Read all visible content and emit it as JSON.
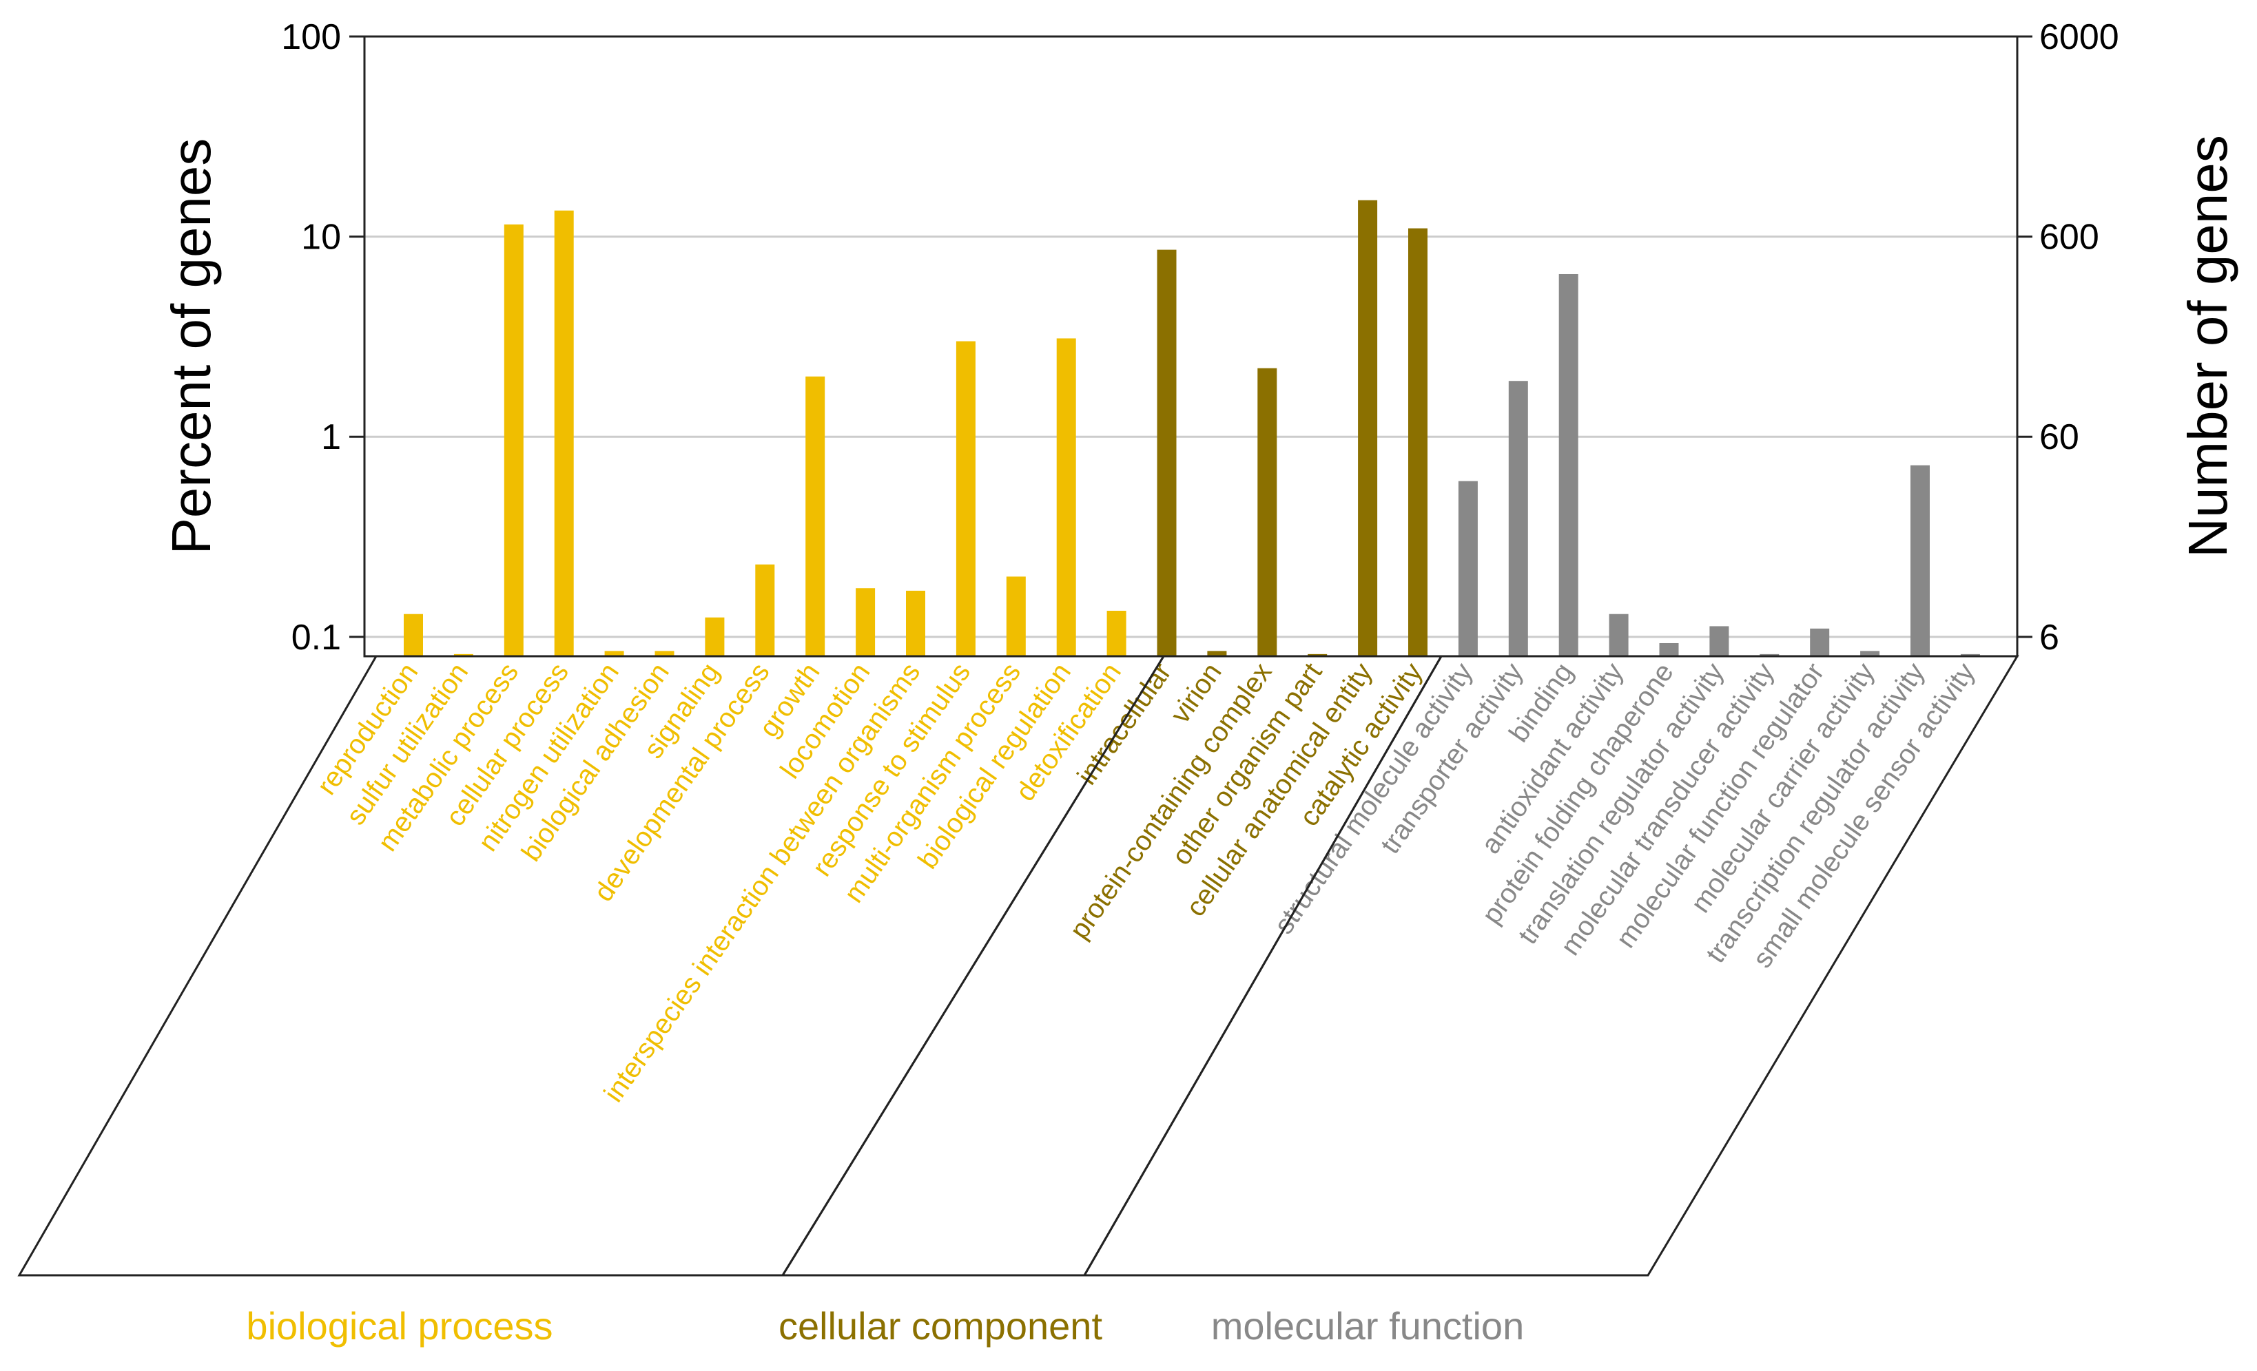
{
  "chart_data": {
    "type": "bar",
    "y_scale": "log",
    "grid": true,
    "ylabel_left": "Percent of genes",
    "ylabel_right": "Number of genes",
    "ylim_left": [
      0.08,
      100
    ],
    "ylim_right": [
      4.8,
      6000
    ],
    "left_ticks": [
      {
        "value": 0.1,
        "label": "0.1"
      },
      {
        "value": 1,
        "label": "1"
      },
      {
        "value": 10,
        "label": "10"
      },
      {
        "value": 100,
        "label": "100"
      }
    ],
    "right_ticks": [
      {
        "value": 6,
        "label": "6"
      },
      {
        "value": 60,
        "label": "60"
      },
      {
        "value": 600,
        "label": "600"
      },
      {
        "value": 6000,
        "label": "6000"
      }
    ],
    "colors": {
      "biological_process": "#F0BE00",
      "cellular_component": "#8B7000",
      "molecular_function": "#888888"
    },
    "groups": [
      {
        "key": "biological_process",
        "label": "biological process"
      },
      {
        "key": "cellular_component",
        "label": "cellular component"
      },
      {
        "key": "molecular_function",
        "label": "molecular function"
      }
    ],
    "bars": [
      {
        "label": "reproduction",
        "group": "biological_process",
        "value": 0.13
      },
      {
        "label": "sulfur utilization",
        "group": "biological_process",
        "value": 0.082
      },
      {
        "label": "metabolic process",
        "group": "biological_process",
        "value": 11.5
      },
      {
        "label": "cellular process",
        "group": "biological_process",
        "value": 13.5
      },
      {
        "label": "nitrogen utilization",
        "group": "biological_process",
        "value": 0.085
      },
      {
        "label": "biological adhesion",
        "group": "biological_process",
        "value": 0.085
      },
      {
        "label": "signaling",
        "group": "biological_process",
        "value": 0.125
      },
      {
        "label": "developmental process",
        "group": "biological_process",
        "value": 0.23
      },
      {
        "label": "growth",
        "group": "biological_process",
        "value": 2.0
      },
      {
        "label": "locomotion",
        "group": "biological_process",
        "value": 0.175
      },
      {
        "label": "interspecies interaction between organisms",
        "group": "biological_process",
        "value": 0.17
      },
      {
        "label": "response to stimulus",
        "group": "biological_process",
        "value": 3.0
      },
      {
        "label": "multi-organism process",
        "group": "biological_process",
        "value": 0.2
      },
      {
        "label": "biological regulation",
        "group": "biological_process",
        "value": 3.1
      },
      {
        "label": "detoxification",
        "group": "biological_process",
        "value": 0.135
      },
      {
        "label": "intracellular",
        "group": "cellular_component",
        "value": 8.6
      },
      {
        "label": "virion",
        "group": "cellular_component",
        "value": 0.085
      },
      {
        "label": "protein-containing complex",
        "group": "cellular_component",
        "value": 2.2
      },
      {
        "label": "other organism part",
        "group": "cellular_component",
        "value": 0.082
      },
      {
        "label": "cellular anatomical entity",
        "group": "cellular_component",
        "value": 15.2
      },
      {
        "label": "catalytic activity",
        "group": "cellular_component",
        "value": 11.0
      },
      {
        "label": "structural molecule activity",
        "group": "molecular_function",
        "value": 0.6
      },
      {
        "label": "transporter activity",
        "group": "molecular_function",
        "value": 1.9
      },
      {
        "label": "binding",
        "group": "molecular_function",
        "value": 6.5
      },
      {
        "label": "antioxidant activity",
        "group": "molecular_function",
        "value": 0.13
      },
      {
        "label": "protein folding chaperone",
        "group": "molecular_function",
        "value": 0.093
      },
      {
        "label": "translation regulator activity",
        "group": "molecular_function",
        "value": 0.113
      },
      {
        "label": "molecular transducer activity",
        "group": "molecular_function",
        "value": 0.082
      },
      {
        "label": "molecular function regulator",
        "group": "molecular_function",
        "value": 0.11
      },
      {
        "label": "molecular carrier activity",
        "group": "molecular_function",
        "value": 0.085
      },
      {
        "label": "transcription regulator activity",
        "group": "molecular_function",
        "value": 0.72
      },
      {
        "label": "small molecule sensor activity",
        "group": "molecular_function",
        "value": 0.082
      }
    ]
  }
}
